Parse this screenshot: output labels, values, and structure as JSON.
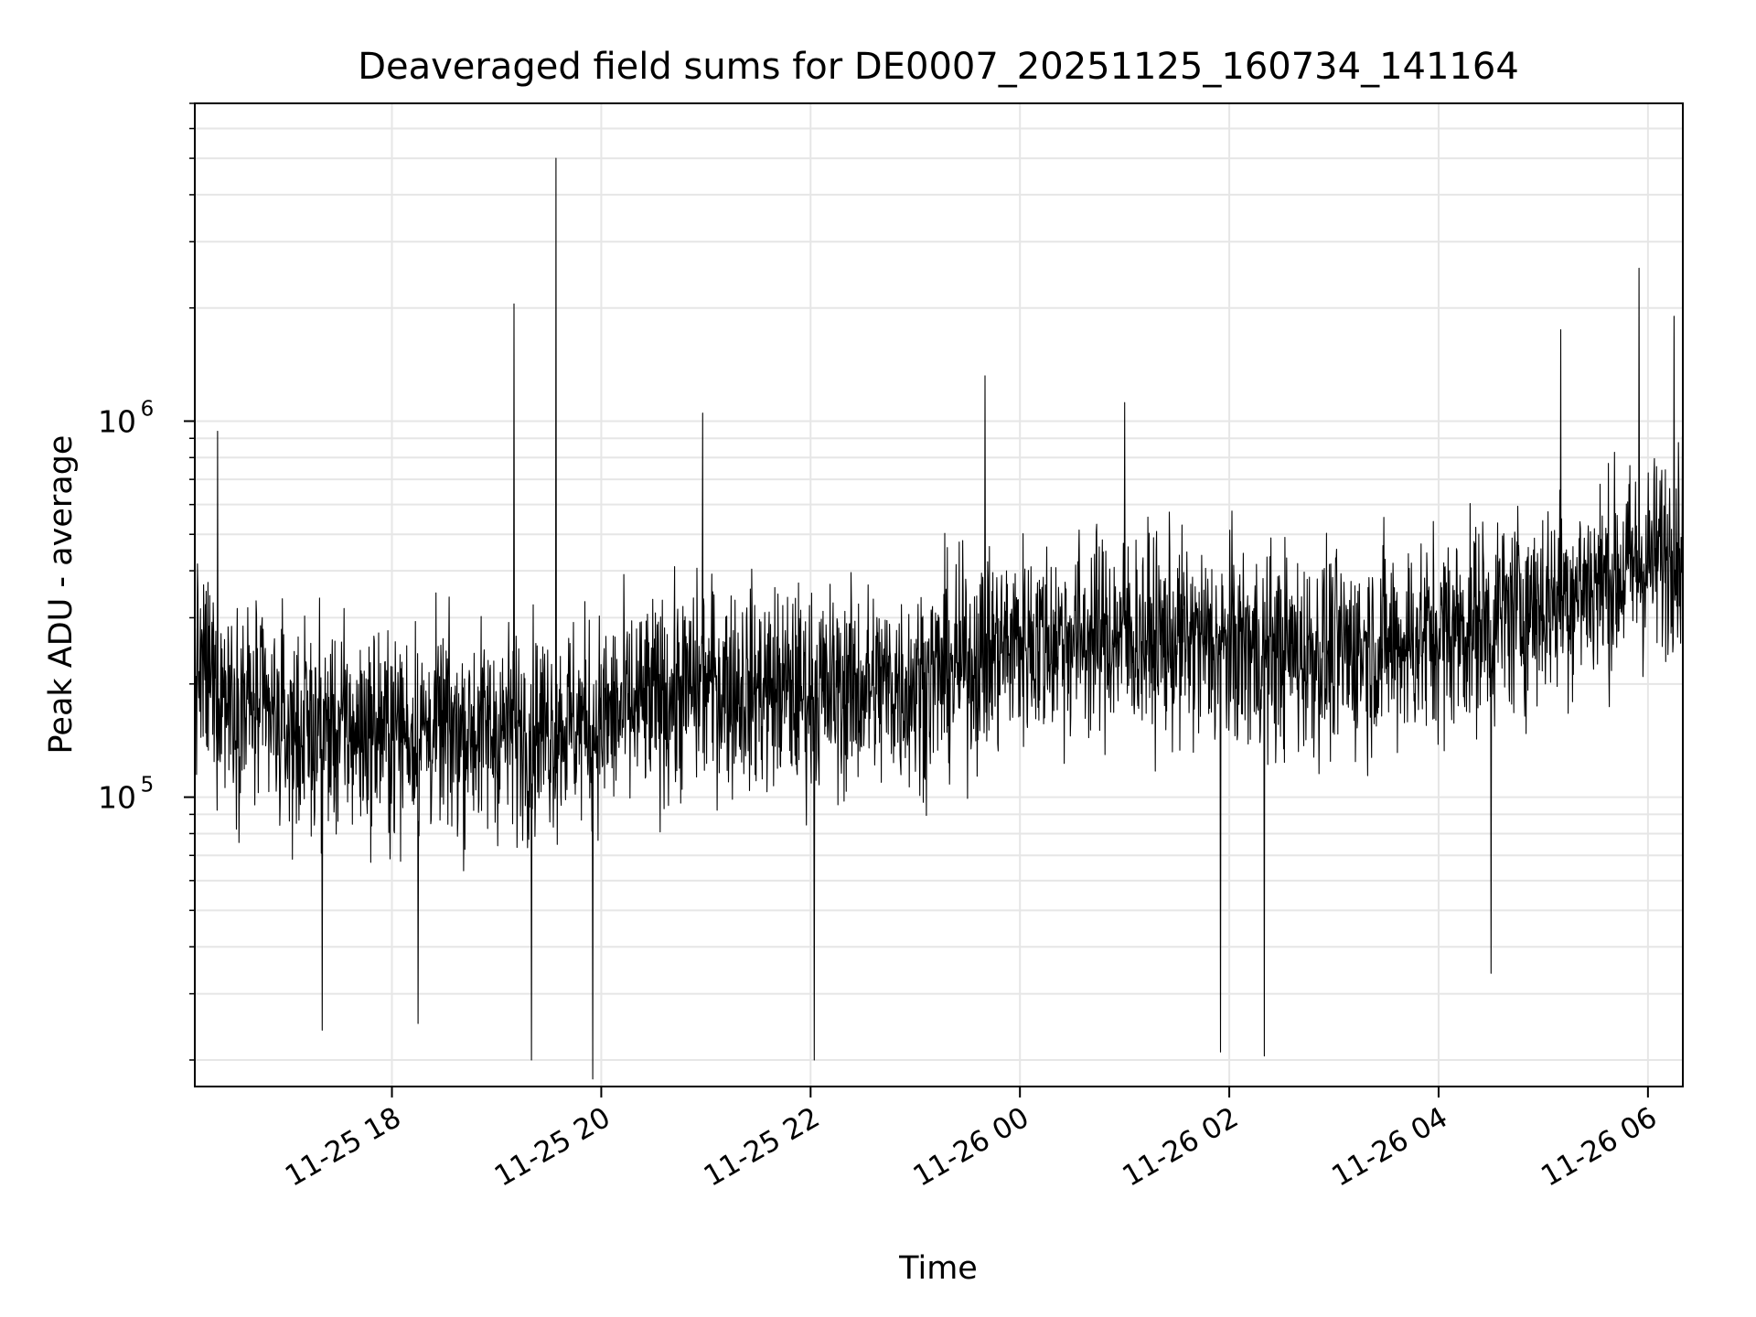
{
  "chart_data": {
    "type": "line",
    "title": "Deaveraged field sums for DE0007_20251125_160734_141164",
    "xlabel": "Time",
    "ylabel": "Peak ADU - average",
    "y_scale": "log",
    "x_range": [
      "11-25 16:07",
      "11-26 06:20"
    ],
    "ylim": [
      17000,
      7000000
    ],
    "x_ticks": [
      "11-25 18",
      "11-25 20",
      "11-25 22",
      "11-26 00",
      "11-26 02",
      "11-26 04",
      "11-26 06"
    ],
    "y_ticks": [
      {
        "base": "10",
        "exp": "5",
        "value": 100000
      },
      {
        "base": "10",
        "exp": "6",
        "value": 1000000
      }
    ],
    "grid": true,
    "line_color": "#000000",
    "grid_color": "#e6e6e6",
    "series": [
      {
        "x_start": "11-25 16:07",
        "x_end": "11-26 06:20",
        "baseline_points": [
          [
            "11-25 16:07",
            220000
          ],
          [
            "11-25 17:00",
            150000
          ],
          [
            "11-25 18:00",
            150000
          ],
          [
            "11-25 19:00",
            150000
          ],
          [
            "11-25 20:00",
            160000
          ],
          [
            "11-25 21:00",
            200000
          ],
          [
            "11-25 22:00",
            190000
          ],
          [
            "11-25 23:00",
            200000
          ],
          [
            "11-26 00:00",
            260000
          ],
          [
            "11-26 01:00",
            270000
          ],
          [
            "11-26 02:00",
            250000
          ],
          [
            "11-26 03:00",
            240000
          ],
          [
            "11-26 04:00",
            270000
          ],
          [
            "11-26 05:00",
            330000
          ],
          [
            "11-26 06:00",
            420000
          ],
          [
            "11-26 06:20",
            480000
          ]
        ],
        "peaks": [
          [
            "11-25 16:20",
            940000
          ],
          [
            "11-25 19:10",
            2050000
          ],
          [
            "11-25 19:34",
            5000000
          ],
          [
            "11-25 20:58",
            1050000
          ],
          [
            "11-25 23:40",
            1320000
          ],
          [
            "11-26 01:00",
            1120000
          ],
          [
            "11-26 05:10",
            1750000
          ],
          [
            "11-26 05:55",
            2550000
          ],
          [
            "11-26 06:15",
            1900000
          ]
        ],
        "troughs": [
          [
            "11-25 17:20",
            24000
          ],
          [
            "11-25 18:15",
            25000
          ],
          [
            "11-25 19:20",
            20000
          ],
          [
            "11-25 19:55",
            17500
          ],
          [
            "11-25 22:02",
            20000
          ],
          [
            "11-26 01:55",
            21000
          ],
          [
            "11-26 02:20",
            20500
          ],
          [
            "11-26 04:30",
            34000
          ]
        ]
      }
    ]
  }
}
